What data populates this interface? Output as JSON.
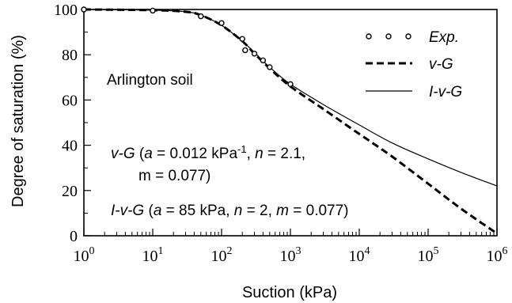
{
  "chart_data": {
    "type": "line",
    "xlabel": "Suction (kPa)",
    "ylabel": "Degree of saturation (%)",
    "xscale": "log",
    "xlim": [
      1,
      1000000
    ],
    "ylim": [
      0,
      100
    ],
    "x_tick_labels": [
      {
        "base": "10",
        "exp": "0"
      },
      {
        "base": "10",
        "exp": "1"
      },
      {
        "base": "10",
        "exp": "2"
      },
      {
        "base": "10",
        "exp": "3"
      },
      {
        "base": "10",
        "exp": "4"
      },
      {
        "base": "10",
        "exp": "5"
      },
      {
        "base": "10",
        "exp": "6"
      }
    ],
    "y_ticks": [
      "0",
      "20",
      "40",
      "60",
      "80",
      "100"
    ],
    "grid": false,
    "legend_position": "top-right",
    "soil_label": "Arlington soil",
    "annotations": {
      "vg_line1": "v-G (a = 0.012 kPa-1, n = 2.1,",
      "vg_line2": "m = 0.077)",
      "ivg_line": "I-v-G (a = 85 kPa, n = 2, m = 0.077)"
    },
    "series": [
      {
        "name": "Exp.",
        "kind": "scatter",
        "x": [
          1,
          10,
          50,
          100,
          200,
          220,
          300,
          400,
          500,
          1000
        ],
        "y": [
          100,
          99.5,
          97,
          94,
          87,
          82,
          80.5,
          77.5,
          74.5,
          67
        ]
      },
      {
        "name": "v-G",
        "kind": "dashed-line",
        "x": [
          1,
          10,
          30,
          50,
          100,
          200,
          300,
          500,
          1000,
          3000,
          10000,
          30000,
          100000,
          300000,
          1000000
        ],
        "y": [
          100,
          99.7,
          99,
          97.5,
          93,
          86,
          80.5,
          74,
          66,
          56,
          45,
          35,
          23,
          12,
          1
        ]
      },
      {
        "name": "I-v-G",
        "kind": "solid-line",
        "x": [
          1,
          10,
          30,
          50,
          100,
          200,
          300,
          500,
          1000,
          3000,
          10000,
          30000,
          100000,
          300000,
          1000000
        ],
        "y": [
          100,
          99.7,
          99,
          97.5,
          93,
          86,
          81,
          74.5,
          67,
          58,
          49,
          41,
          34,
          28,
          22
        ]
      }
    ]
  }
}
